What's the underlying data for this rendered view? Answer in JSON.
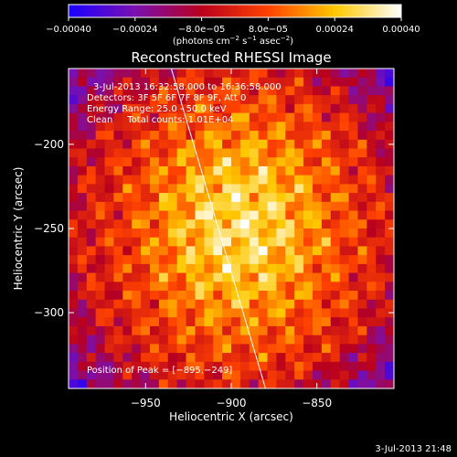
{
  "chart_data": {
    "type": "heatmap",
    "title": "Reconstructed RHESSI Image",
    "xlabel": "Heliocentric X (arcsec)",
    "ylabel": "Heliocentric Y (arcsec)",
    "xlim": [
      -995,
      -805
    ],
    "ylim": [
      -345,
      -155
    ],
    "x_ticks": [
      -950,
      -900,
      -850
    ],
    "x_tick_labels": [
      "−950",
      "−900",
      "−850"
    ],
    "y_ticks": [
      -200,
      -250,
      -300
    ],
    "y_tick_labels": [
      "−200",
      "−250",
      "−300"
    ],
    "colorbar": {
      "min": -0.0004,
      "max": 0.0004,
      "ticks": [
        -0.0004,
        -0.00024,
        -8e-05,
        8e-05,
        0.00024,
        0.0004
      ],
      "tick_labels": [
        "−0.00040",
        "−0.00024",
        "−8.0e−05",
        "8.0e−05",
        "0.00024",
        "0.00040"
      ],
      "colors": [
        "#1a00ff",
        "#7a10b0",
        "#b8001e",
        "#ff4200",
        "#ffc800",
        "#ffffff"
      ]
    },
    "units": {
      "prefix": "(photons cm",
      "exp1": "−2",
      "mid": " s",
      "exp2": "−1",
      "suffix": " asec",
      "exp3": "−2",
      "close": ")"
    },
    "peak": {
      "x": -895,
      "y": -249
    },
    "limb_line": {
      "x1": -935,
      "y1": -155,
      "x2": -880,
      "y2": -345
    },
    "info_lines": [
      "3-Jul-2013 16:32:58.000 to 16:36:58.000",
      "Detectors: 3F 5F 6F 7F 8F 9F, Att 0",
      "Energy Range: 25.0 - 50.0 keV",
      "Clean     Total counts: 1.01E+04"
    ],
    "peak_text": "Position of Peak = [−895,−249]",
    "timestamp": "3-Jul-2013 21:48"
  }
}
